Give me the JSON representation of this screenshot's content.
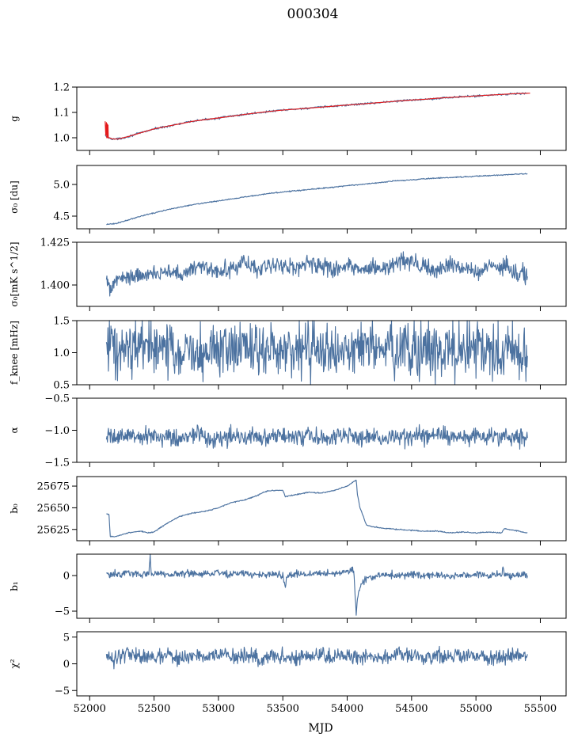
{
  "figure": {
    "title": "000304",
    "xlabel": "MJD",
    "colors": {
      "series": "#4c72a0",
      "fit": "#e41a1c",
      "axes": "#000000"
    }
  },
  "chart_data": [
    {
      "type": "line",
      "id": "g",
      "ylabel": "g",
      "ylim": [
        0.95,
        1.2
      ],
      "yticks": [
        "1.0",
        "1.1",
        "1.2"
      ],
      "xlim": [
        51900,
        55700
      ],
      "xticks": [
        "52000",
        "52500",
        "53000",
        "53500",
        "54000",
        "54500",
        "55000",
        "55500"
      ],
      "show_xtick_labels": false,
      "series": [
        {
          "color": "#4c72a0",
          "x": [
            52120,
            52130,
            52150,
            52180,
            52220,
            52300,
            52400,
            52500,
            52600,
            52700,
            52800,
            52900,
            53000,
            53100,
            53200,
            53300,
            53400,
            53500,
            53600,
            53700,
            53800,
            53900,
            54000,
            54100,
            54200,
            54300,
            54400,
            54500,
            54600,
            54700,
            54800,
            54900,
            55000,
            55100,
            55200,
            55300,
            55400
          ],
          "y": [
            1.01,
            1.005,
            1.0,
            0.995,
            0.995,
            1.005,
            1.02,
            1.035,
            1.045,
            1.055,
            1.065,
            1.072,
            1.078,
            1.085,
            1.092,
            1.098,
            1.104,
            1.109,
            1.113,
            1.117,
            1.121,
            1.125,
            1.129,
            1.133,
            1.137,
            1.141,
            1.145,
            1.149,
            1.152,
            1.156,
            1.159,
            1.162,
            1.165,
            1.168,
            1.171,
            1.174,
            1.176
          ]
        },
        {
          "color": "#e41a1c",
          "x": [
            52120,
            52125,
            52130,
            52133,
            52136,
            52139,
            52142,
            52145,
            52150,
            52180,
            52220,
            52300,
            52400,
            52500,
            52600,
            52700,
            52800,
            52900,
            53000,
            53100,
            53200,
            53300,
            53400,
            53500,
            53600,
            53700,
            53800,
            53900,
            54000,
            54100,
            54200,
            54300,
            54400,
            54500,
            54600,
            54700,
            54800,
            54900,
            55000,
            55100,
            55200,
            55300,
            55420
          ],
          "y": [
            1.065,
            1.01,
            1.06,
            1.0,
            1.055,
            1.0,
            1.05,
            1.0,
            1.0,
            0.995,
            0.995,
            1.005,
            1.02,
            1.035,
            1.045,
            1.055,
            1.065,
            1.072,
            1.078,
            1.085,
            1.092,
            1.098,
            1.104,
            1.109,
            1.113,
            1.117,
            1.121,
            1.125,
            1.129,
            1.133,
            1.137,
            1.141,
            1.145,
            1.149,
            1.152,
            1.156,
            1.159,
            1.162,
            1.165,
            1.168,
            1.171,
            1.174,
            1.176
          ]
        }
      ]
    },
    {
      "type": "line",
      "id": "sigma0-du",
      "ylabel": "σ₀ [du]",
      "ylim": [
        4.3,
        5.3
      ],
      "yticks": [
        "4.5",
        "5.0"
      ],
      "xlim": [
        51900,
        55700
      ],
      "xticks": [
        "52000",
        "52500",
        "53000",
        "53500",
        "54000",
        "54500",
        "55000",
        "55500"
      ],
      "show_xtick_labels": false,
      "series": [
        {
          "color": "#4c72a0",
          "x": [
            52130,
            52200,
            52300,
            52400,
            52500,
            52600,
            52700,
            52800,
            52900,
            53000,
            53100,
            53200,
            53300,
            53400,
            53500,
            53600,
            53700,
            53800,
            53900,
            54000,
            54100,
            54200,
            54300,
            54400,
            54500,
            54600,
            54700,
            54800,
            54900,
            55000,
            55100,
            55200,
            55300,
            55400
          ],
          "y": [
            4.37,
            4.38,
            4.44,
            4.5,
            4.55,
            4.6,
            4.64,
            4.68,
            4.71,
            4.74,
            4.77,
            4.8,
            4.83,
            4.86,
            4.88,
            4.9,
            4.92,
            4.94,
            4.96,
            4.98,
            5.0,
            5.02,
            5.04,
            5.06,
            5.07,
            5.09,
            5.1,
            5.11,
            5.12,
            5.13,
            5.14,
            5.15,
            5.16,
            5.17
          ]
        }
      ]
    },
    {
      "type": "line",
      "id": "sigma0-mk",
      "ylabel": "σ₀[mK s^1/2]",
      "ylim": [
        1.3875,
        1.425
      ],
      "yticks": [
        "1.400",
        "1.425"
      ],
      "xlim": [
        51900,
        55700
      ],
      "xticks": [
        "52000",
        "52500",
        "53000",
        "53500",
        "54000",
        "54500",
        "55000",
        "55500"
      ],
      "show_xtick_labels": false,
      "series": [
        {
          "color": "#4c72a0",
          "x": [
            52130,
            52160,
            52200,
            52300,
            52400,
            52500,
            52600,
            52700,
            52800,
            52900,
            53000,
            53100,
            53200,
            53300,
            53400,
            53500,
            53600,
            53700,
            53800,
            53900,
            54000,
            54100,
            54200,
            54300,
            54400,
            54500,
            54600,
            54700,
            54800,
            54900,
            55000,
            55100,
            55200,
            55300,
            55400
          ],
          "y": [
            1.402,
            1.398,
            1.403,
            1.406,
            1.405,
            1.407,
            1.408,
            1.406,
            1.409,
            1.41,
            1.408,
            1.41,
            1.413,
            1.409,
            1.412,
            1.411,
            1.41,
            1.413,
            1.411,
            1.409,
            1.412,
            1.41,
            1.409,
            1.41,
            1.413,
            1.414,
            1.41,
            1.408,
            1.412,
            1.41,
            1.407,
            1.41,
            1.412,
            1.409,
            1.405
          ]
        }
      ]
    },
    {
      "type": "line",
      "id": "fknee",
      "ylabel": "f_knee [mHz]",
      "ylim": [
        0.5,
        1.5
      ],
      "yticks": [
        "0.5",
        "1.0",
        "1.5"
      ],
      "xlim": [
        51900,
        55700
      ],
      "xticks": [
        "52000",
        "52500",
        "53000",
        "53500",
        "54000",
        "54500",
        "55000",
        "55500"
      ],
      "show_xtick_labels": false,
      "series": [
        {
          "color": "#4c72a0",
          "x": [
            52130,
            52200,
            52300,
            52400,
            52500,
            52600,
            52700,
            52800,
            52900,
            53000,
            53100,
            53200,
            53300,
            53400,
            53500,
            53600,
            53700,
            53800,
            53900,
            54000,
            54100,
            54200,
            54300,
            54400,
            54500,
            54600,
            54700,
            54800,
            54900,
            55000,
            55100,
            55200,
            55300,
            55400
          ],
          "y": [
            1.15,
            1.1,
            1.05,
            1.08,
            1.02,
            1.1,
            1.05,
            1.08,
            1.02,
            1.06,
            1.1,
            1.04,
            1.08,
            1.05,
            1.1,
            1.03,
            1.07,
            1.05,
            1.08,
            1.02,
            1.05,
            1.1,
            1.03,
            1.06,
            1.08,
            1.02,
            1.06,
            1.05,
            1.1,
            1.03,
            1.05,
            1.0,
            0.98,
            0.95
          ]
        }
      ]
    },
    {
      "type": "line",
      "id": "alpha",
      "ylabel": "α",
      "ylim": [
        -1.5,
        -0.5
      ],
      "yticks": [
        "−1.5",
        "−1.0",
        "−0.5"
      ],
      "xlim": [
        51900,
        55700
      ],
      "xticks": [
        "52000",
        "52500",
        "53000",
        "53500",
        "54000",
        "54500",
        "55000",
        "55500"
      ],
      "show_xtick_labels": false,
      "series": [
        {
          "color": "#4c72a0",
          "x": [
            52130,
            52200,
            52300,
            52400,
            52500,
            52600,
            52700,
            52800,
            52900,
            53000,
            53100,
            53200,
            53300,
            53400,
            53500,
            53600,
            53700,
            53800,
            53900,
            54000,
            54100,
            54200,
            54300,
            54400,
            54500,
            54600,
            54700,
            54800,
            54900,
            55000,
            55100,
            55200,
            55300,
            55400
          ],
          "y": [
            -1.12,
            -1.1,
            -1.08,
            -1.12,
            -1.1,
            -1.09,
            -1.11,
            -1.08,
            -1.1,
            -1.12,
            -1.08,
            -1.1,
            -1.11,
            -1.09,
            -1.1,
            -1.12,
            -1.08,
            -1.1,
            -1.11,
            -1.09,
            -1.1,
            -1.08,
            -1.12,
            -1.1,
            -1.09,
            -1.11,
            -1.08,
            -1.1,
            -1.12,
            -1.09,
            -1.1,
            -1.08,
            -1.1,
            -1.12
          ]
        }
      ]
    },
    {
      "type": "line",
      "id": "b0",
      "ylabel": "b₀",
      "ylim": [
        25612,
        25686
      ],
      "yticks": [
        "25625",
        "25650",
        "25675"
      ],
      "xlim": [
        51900,
        55700
      ],
      "xticks": [
        "52000",
        "52500",
        "53000",
        "53500",
        "54000",
        "54500",
        "55000",
        "55500"
      ],
      "show_xtick_labels": false,
      "series": [
        {
          "color": "#4c72a0",
          "x": [
            52130,
            52150,
            52160,
            52200,
            52300,
            52400,
            52450,
            52500,
            52600,
            52700,
            52800,
            52900,
            53000,
            53100,
            53200,
            53300,
            53350,
            53400,
            53500,
            53520,
            53600,
            53700,
            53800,
            53900,
            54000,
            54050,
            54070,
            54080,
            54100,
            54150,
            54200,
            54300,
            54400,
            54500,
            54600,
            54700,
            54800,
            54900,
            55000,
            55100,
            55200,
            55220,
            55300,
            55400
          ],
          "y": [
            25643,
            25642,
            25617,
            25617,
            25621,
            25623,
            25621,
            25622,
            25632,
            25640,
            25644,
            25646,
            25650,
            25656,
            25659,
            25664,
            25668,
            25670,
            25670,
            25663,
            25665,
            25668,
            25667,
            25670,
            25675,
            25680,
            25682,
            25665,
            25650,
            25630,
            25628,
            25626,
            25625,
            25624,
            25623,
            25623,
            25621,
            25622,
            25621,
            25622,
            25621,
            25626,
            25624,
            25621
          ]
        }
      ]
    },
    {
      "type": "line",
      "id": "b1",
      "ylabel": "b₁",
      "ylim": [
        -6,
        3
      ],
      "yticks": [
        "−5",
        "0"
      ],
      "xlim": [
        51900,
        55700
      ],
      "xticks": [
        "52000",
        "52500",
        "53000",
        "53500",
        "54000",
        "54500",
        "55000",
        "55500"
      ],
      "show_xtick_labels": false,
      "series": [
        {
          "color": "#4c72a0",
          "x": [
            52130,
            52200,
            52300,
            52400,
            52460,
            52470,
            52480,
            52500,
            52600,
            52700,
            52800,
            52900,
            53000,
            53100,
            53200,
            53300,
            53400,
            53500,
            53520,
            53540,
            53600,
            53700,
            53800,
            53900,
            54000,
            54050,
            54070,
            54080,
            54100,
            54150,
            54200,
            54300,
            54400,
            54500,
            54600,
            54700,
            54800,
            54900,
            55000,
            55100,
            55200,
            55210,
            55220,
            55300,
            55400
          ],
          "y": [
            0.1,
            0.2,
            0.3,
            0.1,
            0.3,
            2.8,
            0.2,
            0.3,
            0.1,
            0.2,
            0.3,
            0.2,
            0.4,
            0.2,
            0.3,
            0.1,
            0.2,
            0.1,
            -1.3,
            0.1,
            0.3,
            0.2,
            0.4,
            0.3,
            0.6,
            0.8,
            -5.3,
            -3.0,
            -1.5,
            -0.4,
            -0.1,
            0.1,
            0.0,
            0.1,
            0.0,
            0.1,
            -0.1,
            0.0,
            0.1,
            0.0,
            0.1,
            1.5,
            0.1,
            0.0,
            0.0
          ]
        }
      ]
    },
    {
      "type": "line",
      "id": "chi2",
      "ylabel": "χ²",
      "ylim": [
        -6,
        6
      ],
      "yticks": [
        "−5",
        "0",
        "5"
      ],
      "xlim": [
        51900,
        55700
      ],
      "xticks": [
        "52000",
        "52500",
        "53000",
        "53500",
        "54000",
        "54500",
        "55000",
        "55500"
      ],
      "show_xtick_labels": true,
      "series": [
        {
          "color": "#4c72a0",
          "x": [
            52130,
            52200,
            52300,
            52400,
            52500,
            52600,
            52700,
            52800,
            52900,
            53000,
            53100,
            53200,
            53300,
            53400,
            53500,
            53600,
            53700,
            53800,
            53900,
            54000,
            54100,
            54200,
            54300,
            54400,
            54500,
            54600,
            54700,
            54800,
            54900,
            55000,
            55100,
            55200,
            55300,
            55400
          ],
          "y": [
            1.5,
            1.0,
            1.8,
            1.5,
            1.2,
            1.6,
            1.0,
            1.5,
            1.3,
            1.7,
            1.2,
            1.5,
            1.0,
            1.6,
            1.4,
            1.1,
            1.5,
            1.7,
            1.2,
            1.6,
            1.3,
            1.5,
            1.0,
            1.8,
            1.4,
            1.2,
            1.6,
            1.3,
            1.5,
            1.7,
            1.1,
            1.5,
            1.6,
            1.8
          ]
        }
      ]
    }
  ]
}
